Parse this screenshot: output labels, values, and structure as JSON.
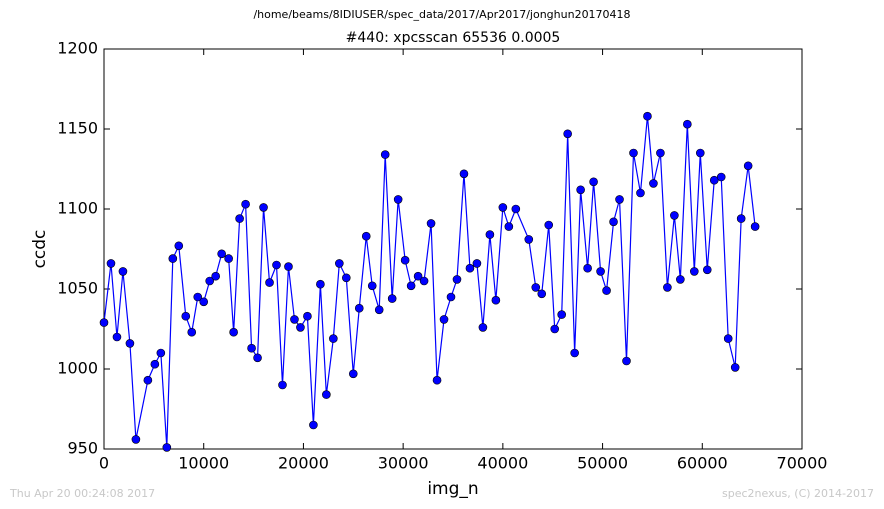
{
  "chart_data": {
    "type": "line",
    "suptitle": "/home/beams/8IDIUSER/spec_data/2017/Apr2017/jonghun20170418",
    "title": "#440: xpcsscan 65536 0.0005",
    "x_label": "img_n",
    "y_label": "ccdc",
    "color": "#0000ff",
    "marker": "o",
    "x": [
      0,
      700,
      1300,
      1900,
      2600,
      3200,
      4400,
      5100,
      5700,
      6300,
      6900,
      7500,
      8200,
      8800,
      9400,
      10000,
      10600,
      11200,
      11800,
      12500,
      13000,
      13600,
      14200,
      14800,
      15400,
      16000,
      16600,
      17300,
      17900,
      18500,
      19100,
      19700,
      20400,
      21000,
      21700,
      22300,
      23000,
      23600,
      24300,
      25000,
      25600,
      26300,
      26900,
      27600,
      28200,
      28900,
      29500,
      30200,
      30800,
      31500,
      32100,
      32800,
      33400,
      34100,
      34800,
      35400,
      36100,
      36700,
      37400,
      38000,
      38700,
      39300,
      40000,
      40600,
      41300,
      42600,
      43300,
      43900,
      44600,
      45200,
      45900,
      46500,
      47200,
      47800,
      48500,
      49100,
      49800,
      50400,
      51100,
      51700,
      52400,
      53100,
      53800,
      54500,
      55100,
      55800,
      56500,
      57200,
      57800,
      58500,
      59200,
      59800,
      60500,
      61200,
      61900,
      62600,
      63300,
      63900,
      64600,
      65300
    ],
    "values": [
      1029,
      1066,
      1020,
      1061,
      1016,
      956,
      993,
      1003,
      1010,
      951,
      1069,
      1077,
      1033,
      1023,
      1045,
      1042,
      1055,
      1058,
      1072,
      1069,
      1023,
      1094,
      1103,
      1013,
      1007,
      1101,
      1054,
      1065,
      990,
      1064,
      1031,
      1026,
      1033,
      965,
      1053,
      984,
      1019,
      1066,
      1057,
      997,
      1038,
      1083,
      1052,
      1037,
      1134,
      1044,
      1106,
      1068,
      1052,
      1058,
      1055,
      1091,
      993,
      1031,
      1045,
      1056,
      1122,
      1063,
      1066,
      1026,
      1084,
      1043,
      1101,
      1089,
      1100,
      1081,
      1051,
      1047,
      1090,
      1025,
      1034,
      1147,
      1010,
      1112,
      1063,
      1117,
      1061,
      1049,
      1092,
      1106,
      1005,
      1135,
      1110,
      1158,
      1116,
      1135,
      1051,
      1096,
      1056,
      1153,
      1061,
      1135,
      1062,
      1118,
      1120,
      1019,
      1001,
      1094,
      1127,
      1089
    ],
    "xlim": [
      0,
      70000
    ],
    "xticks": [
      0,
      10000,
      20000,
      30000,
      40000,
      50000,
      60000,
      70000
    ],
    "ylim": [
      950,
      1200
    ],
    "yticks": [
      950,
      1000,
      1050,
      1100,
      1150,
      1200
    ],
    "grid": false
  },
  "footer": {
    "left": "Thu Apr 20 00:24:08 2017",
    "right": "spec2nexus, (C) 2014-2017"
  }
}
